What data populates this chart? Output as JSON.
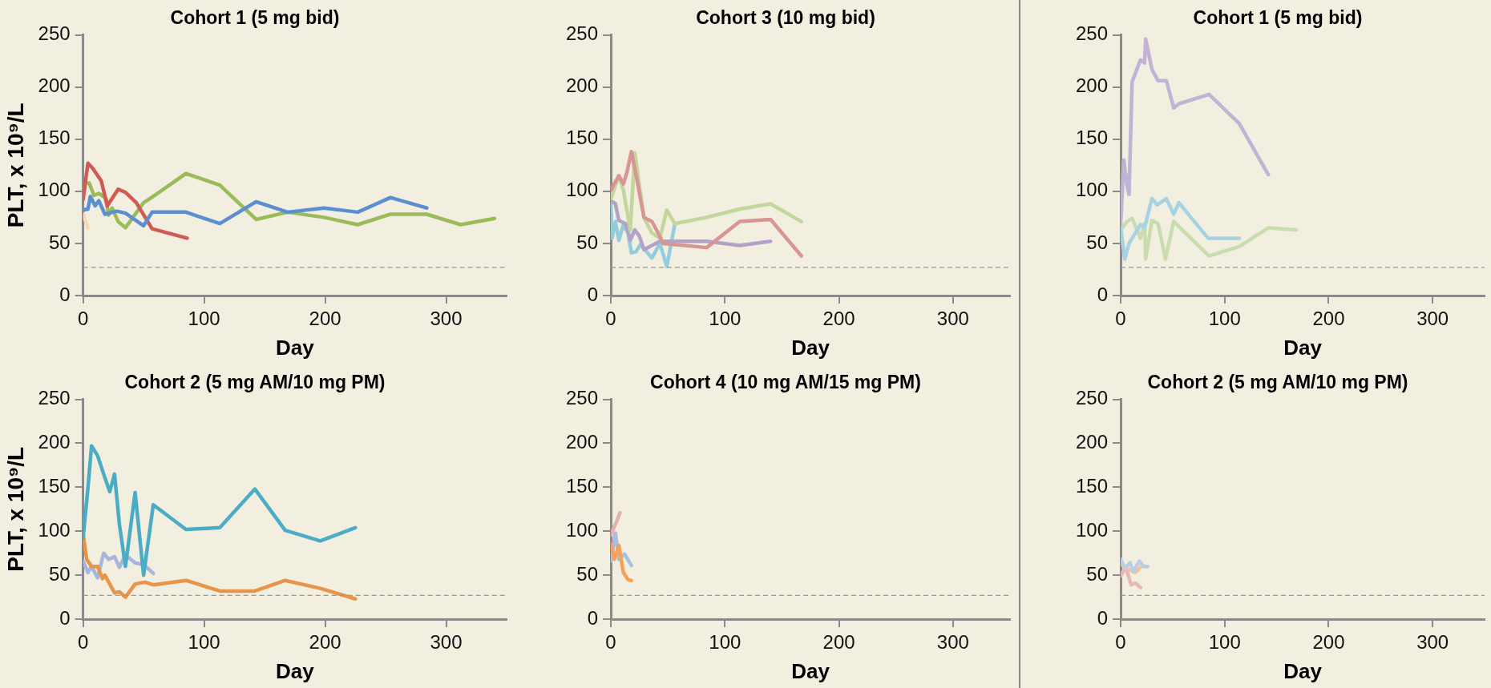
{
  "chart_data": [
    {
      "type": "line",
      "title": "Cohort 1 (5 mg bid)",
      "xlabel": "Day",
      "ylabel": "PLT, x 10⁹/L",
      "xlim": [
        0,
        350
      ],
      "xticks": [
        0,
        100,
        200,
        300
      ],
      "ylim": [
        0,
        250
      ],
      "yticks": [
        0,
        50,
        100,
        150,
        200,
        250
      ],
      "ref_lines": [
        {
          "axis": "y",
          "value": 27,
          "color": "#999999",
          "line_style": "dashed"
        }
      ],
      "series": [
        {
          "color": "#5b8fd0",
          "x": [
            0,
            4,
            6,
            10,
            13,
            18,
            28,
            35,
            50,
            57,
            85,
            113,
            143,
            169,
            199,
            227,
            254,
            284
          ],
          "values": [
            82,
            83,
            95,
            86,
            91,
            78,
            81,
            79,
            67,
            80,
            80,
            69,
            90,
            80,
            84,
            80,
            94,
            84
          ]
        },
        {
          "color": "#d05a55",
          "x": [
            0,
            4,
            8,
            15,
            20,
            29,
            35,
            44,
            57,
            86
          ],
          "values": [
            92,
            127,
            122,
            110,
            86,
            102,
            99,
            89,
            64,
            55
          ]
        },
        {
          "color": "#9bbb59",
          "x": [
            0,
            2,
            5,
            9,
            13,
            19,
            21,
            24,
            29,
            35,
            50,
            59,
            85,
            113,
            143,
            169,
            199,
            227,
            254,
            284,
            312,
            340
          ],
          "values": [
            96,
            108,
            108,
            96,
            98,
            93,
            77,
            84,
            71,
            65,
            89,
            96,
            117,
            106,
            73,
            80,
            75,
            68,
            78,
            78,
            68,
            74
          ]
        },
        {
          "color": "#fcd5b5",
          "x": [
            0,
            4
          ],
          "values": [
            78,
            65
          ]
        }
      ]
    },
    {
      "type": "line",
      "title": "Cohort 3 (10 mg bid)",
      "xlabel": "Day",
      "xlim": [
        0,
        350
      ],
      "xticks": [
        0,
        100,
        200,
        300
      ],
      "ylim": [
        0,
        250
      ],
      "yticks": [
        0,
        50,
        100,
        150,
        200,
        250
      ],
      "ref_lines": [
        {
          "axis": "y",
          "value": 27,
          "color": "#999999",
          "line_style": "dashed"
        }
      ],
      "series": [
        {
          "color": "#d99594",
          "x": [
            0,
            7,
            11,
            14,
            18,
            22,
            29,
            36,
            40,
            46,
            84,
            113,
            140,
            167
          ],
          "values": [
            101,
            115,
            107,
            118,
            138,
            116,
            75,
            71,
            63,
            50,
            46,
            71,
            73,
            38
          ]
        },
        {
          "color": "#c3d69b",
          "x": [
            0,
            7,
            11,
            17,
            21,
            29,
            36,
            43,
            49,
            56,
            84,
            113,
            140,
            167
          ],
          "values": [
            93,
            115,
            101,
            63,
            137,
            75,
            60,
            55,
            82,
            69,
            75,
            83,
            88,
            71
          ]
        },
        {
          "color": "#b3a2c7",
          "x": [
            0,
            4,
            7,
            13,
            17,
            21,
            25,
            29,
            43,
            84,
            113,
            140
          ],
          "values": [
            91,
            88,
            72,
            69,
            53,
            63,
            57,
            44,
            52,
            52,
            48,
            52
          ]
        },
        {
          "color": "#93cddd",
          "x": [
            0,
            1,
            4,
            7,
            11,
            15,
            18,
            22,
            26,
            36,
            43,
            49,
            56
          ],
          "values": [
            88,
            55,
            71,
            53,
            68,
            60,
            41,
            42,
            49,
            36,
            50,
            28,
            68
          ]
        }
      ]
    },
    {
      "type": "line",
      "title": "Cohort 1 (5 mg bid)",
      "xlabel": "Day",
      "xlim": [
        0,
        350
      ],
      "xticks": [
        0,
        100,
        200,
        300
      ],
      "ylim": [
        0,
        250
      ],
      "yticks": [
        0,
        50,
        100,
        150,
        200,
        250
      ],
      "ref_lines": [
        {
          "axis": "y",
          "value": 27,
          "color": "#999999",
          "line_style": "dashed"
        }
      ],
      "series": [
        {
          "color": "#c0b3d6",
          "x": [
            0,
            3,
            6,
            8,
            11,
            19,
            23,
            24,
            30,
            36,
            44,
            51,
            56,
            85,
            114,
            142
          ],
          "values": [
            68,
            130,
            106,
            97,
            205,
            226,
            223,
            246,
            217,
            206,
            206,
            180,
            184,
            193,
            165,
            116
          ]
        },
        {
          "color": "#a5d3e3",
          "x": [
            0,
            4,
            8,
            19,
            23,
            30,
            35,
            44,
            51,
            56,
            84,
            114
          ],
          "values": [
            65,
            35,
            50,
            68,
            65,
            93,
            87,
            93,
            78,
            89,
            55,
            55
          ]
        },
        {
          "color": "#c9dcb0",
          "x": [
            0,
            6,
            11,
            19,
            23,
            24,
            30,
            36,
            43,
            51,
            85,
            114,
            142,
            169
          ],
          "values": [
            63,
            71,
            74,
            55,
            69,
            35,
            72,
            69,
            35,
            71,
            38,
            47,
            65,
            63
          ]
        }
      ]
    },
    {
      "type": "line",
      "title": "Cohort 2 (5 mg AM/10 mg PM)",
      "xlabel": "Day",
      "ylabel": "PLT, x 10⁹/L",
      "xlim": [
        0,
        350
      ],
      "xticks": [
        0,
        100,
        200,
        300
      ],
      "ylim": [
        0,
        250
      ],
      "yticks": [
        0,
        50,
        100,
        150,
        200,
        250
      ],
      "ref_lines": [
        {
          "axis": "y",
          "value": 27,
          "color": "#999999",
          "line_style": "dashed"
        }
      ],
      "series": [
        {
          "color": "#4bacc6",
          "x": [
            0,
            4,
            7,
            12,
            17,
            22,
            26,
            30,
            35,
            43,
            50,
            58,
            85,
            113,
            142,
            167,
            196,
            225
          ],
          "values": [
            92,
            149,
            197,
            186,
            165,
            145,
            165,
            108,
            60,
            144,
            50,
            130,
            102,
            104,
            148,
            101,
            89,
            104
          ]
        },
        {
          "color": "#e8954a",
          "x": [
            0,
            3,
            7,
            12,
            16,
            18,
            26,
            30,
            35,
            43,
            51,
            58,
            85,
            113,
            142,
            167,
            196,
            225
          ],
          "values": [
            97,
            68,
            60,
            60,
            46,
            50,
            30,
            31,
            25,
            40,
            42,
            39,
            44,
            32,
            32,
            44,
            35,
            23
          ]
        },
        {
          "color": "#a6b6dc",
          "x": [
            0,
            4,
            7,
            12,
            17,
            21,
            26,
            30,
            35,
            43,
            50,
            58
          ],
          "values": [
            66,
            53,
            60,
            47,
            75,
            68,
            71,
            59,
            73,
            64,
            62,
            52
          ]
        }
      ]
    },
    {
      "type": "line",
      "title": "Cohort 4 (10 mg AM/15 mg PM)",
      "xlabel": "Day",
      "xlim": [
        0,
        350
      ],
      "xticks": [
        0,
        100,
        200,
        300
      ],
      "ylim": [
        0,
        250
      ],
      "yticks": [
        0,
        50,
        100,
        150,
        200,
        250
      ],
      "ref_lines": [
        {
          "axis": "y",
          "value": 27,
          "color": "#999999",
          "line_style": "dashed"
        }
      ],
      "series": [
        {
          "color": "#e6b0b0",
          "x": [
            0,
            3,
            5,
            8
          ],
          "values": [
            96,
            105,
            111,
            121
          ]
        },
        {
          "color": "#f7a05a",
          "x": [
            0,
            3,
            7,
            9,
            11,
            15,
            18
          ],
          "values": [
            85,
            68,
            84,
            68,
            53,
            45,
            44
          ]
        },
        {
          "color": "#a9bfe0",
          "x": [
            0,
            4,
            7,
            12,
            18
          ],
          "values": [
            66,
            98,
            68,
            74,
            61
          ]
        }
      ]
    },
    {
      "type": "line",
      "title": "Cohort 2 (5 mg AM/10 mg PM)",
      "xlabel": "Day",
      "xlim": [
        0,
        350
      ],
      "xticks": [
        0,
        100,
        200,
        300
      ],
      "ylim": [
        0,
        250
      ],
      "yticks": [
        0,
        50,
        100,
        150,
        200,
        250
      ],
      "ref_lines": [
        {
          "axis": "y",
          "value": 27,
          "color": "#999999",
          "line_style": "dashed"
        }
      ],
      "series": [
        {
          "color": "#b9cde5",
          "x": [
            0,
            4,
            9,
            12,
            18,
            22,
            26
          ],
          "values": [
            68,
            58,
            64,
            54,
            66,
            60,
            60
          ]
        },
        {
          "color": "#fac090",
          "x": [
            0,
            5,
            14,
            19
          ],
          "values": [
            63,
            58,
            53,
            59
          ]
        },
        {
          "color": "#e6b9b8",
          "x": [
            0,
            5,
            10,
            14,
            19
          ],
          "values": [
            49,
            59,
            39,
            41,
            36
          ]
        }
      ]
    }
  ]
}
